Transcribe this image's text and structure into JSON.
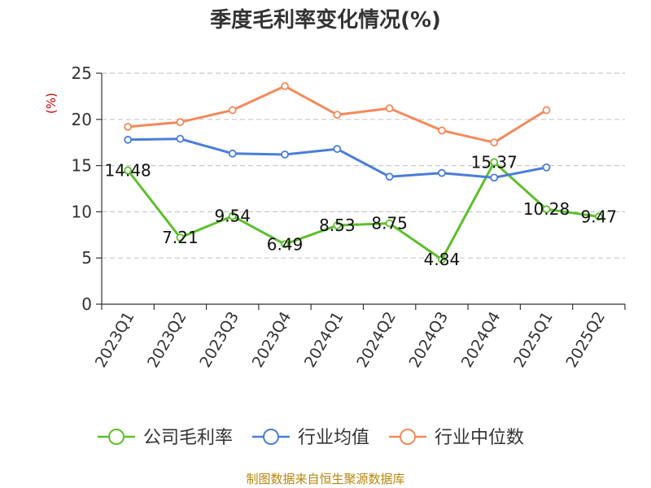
{
  "chart_data": {
    "type": "line",
    "title": "季度毛利率变化情况(%)",
    "ylabel": "(%)",
    "xlabel": "",
    "ylim": [
      0,
      25
    ],
    "yticks": [
      0,
      5,
      10,
      15,
      20,
      25
    ],
    "grid": true,
    "legend_position": "bottom",
    "categories": [
      "2023Q1",
      "2023Q2",
      "2023Q3",
      "2023Q4",
      "2024Q1",
      "2024Q2",
      "2024Q3",
      "2024Q4",
      "2025Q1",
      "2025Q2"
    ],
    "series": [
      {
        "name": "公司毛利率",
        "color": "#5dbf2c",
        "show_labels": true,
        "values": [
          14.48,
          7.21,
          9.54,
          6.49,
          8.53,
          8.75,
          4.84,
          15.37,
          10.28,
          9.47
        ]
      },
      {
        "name": "行业均值",
        "color": "#4a7ddb",
        "show_labels": false,
        "values": [
          17.8,
          17.9,
          16.3,
          16.2,
          16.8,
          13.8,
          14.2,
          13.7,
          14.8,
          null
        ]
      },
      {
        "name": "行业中位数",
        "color": "#f5895a",
        "show_labels": false,
        "values": [
          19.2,
          19.7,
          21.0,
          23.6,
          20.5,
          21.2,
          18.8,
          17.5,
          21.0,
          null
        ]
      }
    ]
  },
  "footer": {
    "source": "制图数据来自恒生聚源数据库"
  }
}
